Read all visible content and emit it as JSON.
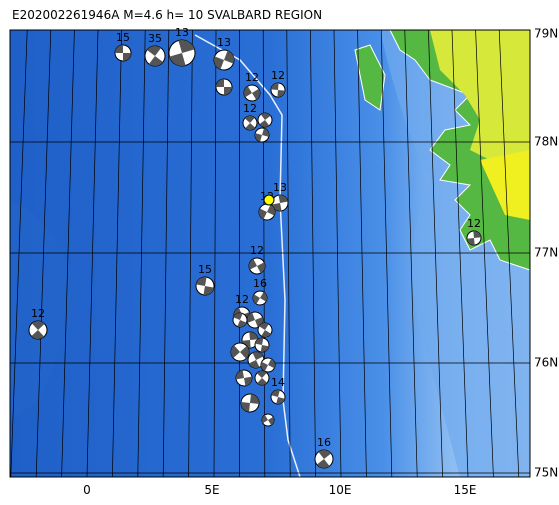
{
  "header": {
    "title": "E202002261946A  M=4.6  h= 10  SVALBARD REGION"
  },
  "lat_labels": [
    "79N",
    "78N",
    "77N",
    "76N",
    "75N"
  ],
  "lon_labels": [
    "0",
    "5E",
    "10E",
    "15E"
  ],
  "events": [
    {
      "label": "15"
    },
    {
      "label": "35"
    },
    {
      "label": "13"
    },
    {
      "label": "13"
    },
    {
      "label": "12"
    },
    {
      "label": "12"
    },
    {
      "label": "12"
    },
    {
      "label": "13"
    },
    {
      "label": "12"
    },
    {
      "label": "12"
    },
    {
      "label": "15"
    },
    {
      "label": "12"
    },
    {
      "label": "12"
    },
    {
      "label": "16"
    },
    {
      "label": "12"
    },
    {
      "label": "14"
    },
    {
      "label": "16"
    }
  ]
}
